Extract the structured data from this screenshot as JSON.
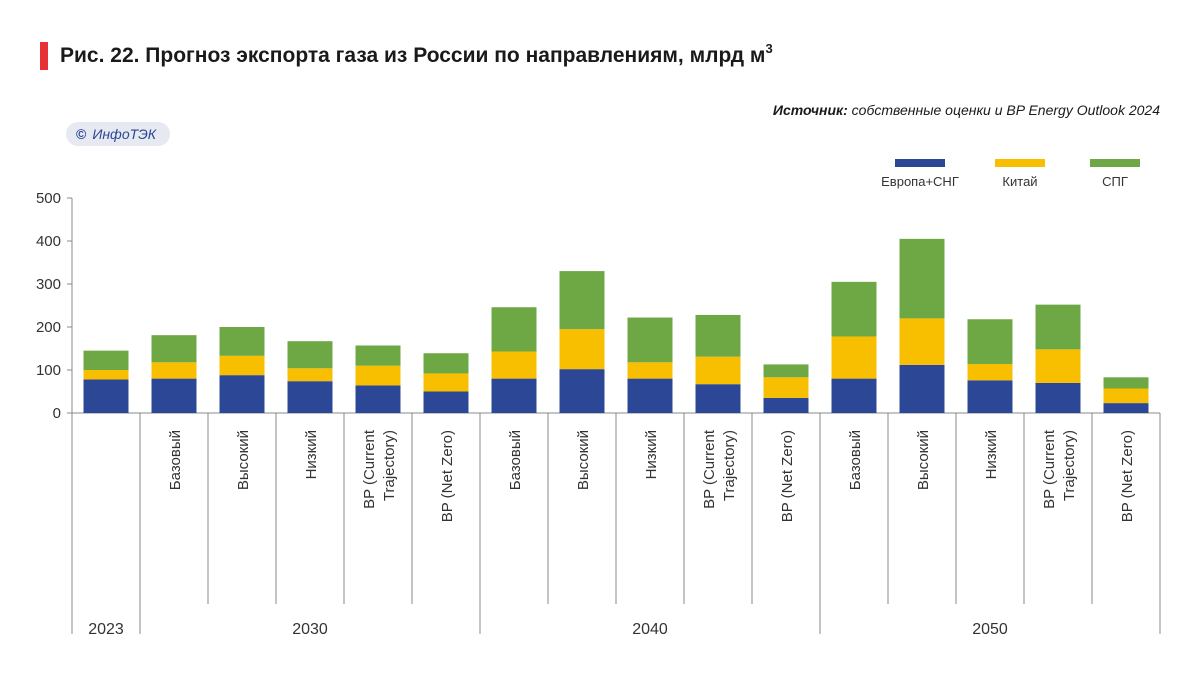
{
  "header": {
    "title": "Рис. 22.  Прогноз экспорта газа из России по направлениям, млрд м",
    "title_sup": "3",
    "source_label": "Источник:",
    "source_text": " собственные оценки и BP Energy Outlook 2024",
    "badge_icon": "copyright-icon",
    "badge_symbol": "©",
    "badge_text": "ИнфоТЭК"
  },
  "chart_data": {
    "type": "bar",
    "stacked": true,
    "title": "Рис. 22.  Прогноз экспорта газа из России по направлениям, млрд м3",
    "ylim": [
      0,
      500
    ],
    "yticks": [
      0,
      100,
      200,
      300,
      400,
      500
    ],
    "grid": false,
    "legend_position": "top-right",
    "categories": [
      "",
      "Базовый",
      "Высокий",
      "Низкий",
      "BP (Current Trajectory)",
      "BP (Net Zero)",
      "Базовый",
      "Высокий",
      "Низкий",
      "BP (Current Trajectory)",
      "BP (Net Zero)",
      "Базовый",
      "Высокий",
      "Низкий",
      "BP (Current Trajectory)",
      "BP (Net Zero)"
    ],
    "category_lines": [
      [
        ""
      ],
      [
        "Базовый"
      ],
      [
        "Высокий"
      ],
      [
        "Низкий"
      ],
      [
        "BP (Current",
        "Trajectory)"
      ],
      [
        "BP (Net Zero)"
      ],
      [
        "Базовый"
      ],
      [
        "Высокий"
      ],
      [
        "Низкий"
      ],
      [
        "BP (Current",
        "Trajectory)"
      ],
      [
        "BP (Net Zero)"
      ],
      [
        "Базовый"
      ],
      [
        "Высокий"
      ],
      [
        "Низкий"
      ],
      [
        "BP (Current",
        "Trajectory)"
      ],
      [
        "BP (Net Zero)"
      ]
    ],
    "groups": [
      {
        "label": "2023",
        "count": 1
      },
      {
        "label": "2030",
        "count": 5
      },
      {
        "label": "2040",
        "count": 5
      },
      {
        "label": "2050",
        "count": 5
      }
    ],
    "series": [
      {
        "name": "Европа+СНГ",
        "color": "#2c4796",
        "values": [
          78,
          80,
          88,
          74,
          64,
          50,
          80,
          102,
          80,
          67,
          35,
          80,
          112,
          76,
          70,
          23
        ]
      },
      {
        "name": "Китай",
        "color": "#f8bf00",
        "values": [
          22,
          38,
          45,
          30,
          46,
          42,
          63,
          93,
          38,
          64,
          48,
          98,
          108,
          38,
          78,
          34
        ]
      },
      {
        "name": "СПГ",
        "color": "#6ea844",
        "values": [
          45,
          63,
          67,
          63,
          47,
          47,
          103,
          135,
          104,
          97,
          30,
          127,
          185,
          104,
          104,
          26
        ]
      }
    ]
  }
}
